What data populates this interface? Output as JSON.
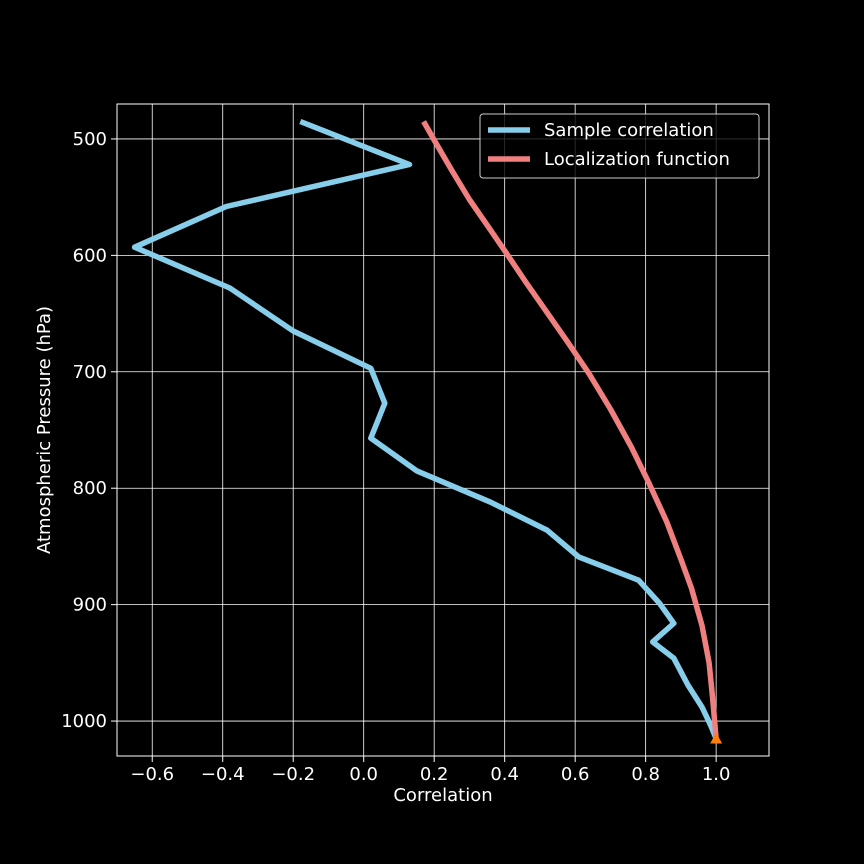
{
  "chart_data": {
    "type": "line",
    "xlabel": "Correlation",
    "ylabel": "Atmospheric Pressure (hPa)",
    "xlim": [
      -0.7,
      1.15
    ],
    "ylim": [
      1030,
      470
    ],
    "y_inverted": true,
    "grid": true,
    "legend_position": "top-right",
    "background": "#000000",
    "xticks": [
      -0.6,
      -0.4,
      -0.2,
      0.0,
      0.2,
      0.4,
      0.6,
      0.8,
      1.0
    ],
    "xtick_labels": [
      "−0.6",
      "−0.4",
      "−0.2",
      "0.0",
      "0.2",
      "0.4",
      "0.6",
      "0.8",
      "1.0"
    ],
    "yticks": [
      500,
      600,
      700,
      800,
      900,
      1000
    ],
    "ytick_labels": [
      "500",
      "600",
      "700",
      "800",
      "900",
      "1000"
    ],
    "series": [
      {
        "name": "Sample correlation",
        "color": "#87ceeb",
        "x": [
          -0.18,
          0.13,
          -0.39,
          -0.65,
          -0.38,
          -0.2,
          0.02,
          0.06,
          0.02,
          0.15,
          0.36,
          0.52,
          0.61,
          0.78,
          0.84,
          0.88,
          0.82,
          0.88,
          0.92,
          0.96,
          0.985,
          1.0
        ],
        "y": [
          485,
          522,
          558,
          593,
          628,
          665,
          697,
          727,
          757,
          785,
          812,
          836,
          859,
          879,
          899,
          916,
          932,
          946,
          969,
          988,
          1004,
          1015
        ]
      },
      {
        "name": "Localization function",
        "color": "#f08080",
        "x": [
          0.17,
          0.2,
          0.25,
          0.3,
          0.35,
          0.4,
          0.46,
          0.52,
          0.58,
          0.64,
          0.7,
          0.76,
          0.81,
          0.86,
          0.9,
          0.93,
          0.96,
          0.98,
          0.99,
          1.0
        ],
        "y": [
          485,
          501,
          527,
          552,
          574,
          596,
          623,
          649,
          675,
          702,
          732,
          765,
          796,
          829,
          861,
          886,
          918,
          950,
          980,
          1015
        ]
      }
    ],
    "marker": {
      "x": 1.0,
      "y": 1015,
      "shape": "triangle",
      "color": "#ff7f0e"
    }
  }
}
